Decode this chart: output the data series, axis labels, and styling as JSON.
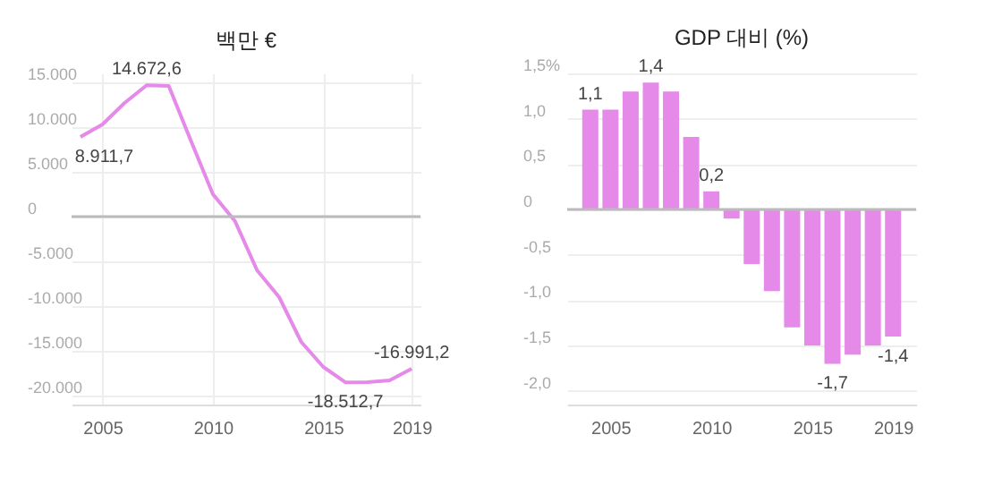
{
  "chart_data": [
    {
      "type": "line",
      "title": "백만 €",
      "x": [
        2004,
        2005,
        2006,
        2007,
        2008,
        2009,
        2010,
        2011,
        2012,
        2013,
        2014,
        2015,
        2016,
        2017,
        2018,
        2019
      ],
      "series": [
        {
          "color": "#e58ae8",
          "values": [
            8911.7,
            10300,
            12700,
            14672.6,
            14600,
            8500,
            2500,
            -500,
            -6000,
            -9000,
            -14000,
            -16800,
            -18512.7,
            -18500,
            -18300,
            -16991.2
          ],
          "value_labels": [
            "8.911,7",
            null,
            null,
            "14.672,6",
            null,
            null,
            null,
            null,
            null,
            null,
            null,
            null,
            "-18.512,7",
            null,
            null,
            "-16.991,2"
          ]
        }
      ],
      "xlim": [
        2003.6,
        2019.4
      ],
      "xticks": [
        2005,
        2010,
        2015,
        2019
      ],
      "ylim": [
        -21000,
        16000
      ],
      "yticks": [
        {
          "value": -20000,
          "label": "-20.000"
        },
        {
          "value": -15000,
          "label": "-15.000"
        },
        {
          "value": -10000,
          "label": "-10.000"
        },
        {
          "value": -5000,
          "label": "-5.000"
        },
        0,
        {
          "value": 5000,
          "label": "5.000"
        },
        {
          "value": 10000,
          "label": "10.000"
        },
        {
          "value": 15000,
          "label": "15.000"
        }
      ],
      "grid": true,
      "marker": "none",
      "ref_lines": [
        {
          "axis": "y",
          "value": 0,
          "color": "#bbbbbb"
        }
      ]
    },
    {
      "type": "bar",
      "title": "GDP 대비 (%)",
      "x": [
        2004,
        2005,
        2006,
        2007,
        2008,
        2009,
        2010,
        2011,
        2012,
        2013,
        2014,
        2015,
        2016,
        2017,
        2018,
        2019
      ],
      "series": [
        {
          "color": "#e58ae8",
          "values": [
            1.1,
            1.1,
            1.3,
            1.4,
            1.3,
            0.8,
            0.2,
            -0.1,
            -0.6,
            -0.9,
            -1.3,
            -1.5,
            -1.7,
            -1.6,
            -1.5,
            -1.4
          ],
          "value_labels": [
            "1,1",
            null,
            null,
            "1,4",
            null,
            null,
            "0,2",
            null,
            null,
            null,
            null,
            null,
            "-1,7",
            null,
            null,
            "-1,4"
          ]
        }
      ],
      "xlim": [
        2003.3,
        2019.7
      ],
      "xticks": [
        2005,
        2010,
        2015,
        2019
      ],
      "ylim": [
        -2.15,
        1.5
      ],
      "yticks": [
        {
          "value": -2,
          "label": "-2,0"
        },
        {
          "value": -1.5,
          "label": "-1,5"
        },
        {
          "value": -1,
          "label": "-1,0"
        },
        {
          "value": -0.5,
          "label": "-0,5"
        },
        0,
        {
          "value": 0.5,
          "label": "0,5"
        },
        {
          "value": 1,
          "label": "1,0"
        },
        {
          "value": 1.5,
          "label": "1,5%"
        }
      ],
      "grid": "y",
      "ref_lines": [
        {
          "axis": "y",
          "value": 0,
          "color": "#bbbbbb"
        }
      ]
    }
  ]
}
